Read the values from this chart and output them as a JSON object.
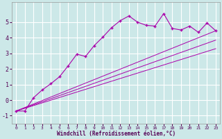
{
  "xlabel": "Windchill (Refroidissement éolien,°C)",
  "background_color": "#cce8e8",
  "grid_color": "#ffffff",
  "line_color": "#aa00aa",
  "xlim": [
    -0.5,
    23.5
  ],
  "ylim": [
    -1.5,
    6.3
  ],
  "xticks": [
    0,
    1,
    2,
    3,
    4,
    5,
    6,
    7,
    8,
    9,
    10,
    11,
    12,
    13,
    14,
    15,
    16,
    17,
    18,
    19,
    20,
    21,
    22,
    23
  ],
  "yticks": [
    -1,
    0,
    1,
    2,
    3,
    4,
    5
  ],
  "series1_x": [
    0,
    1,
    2,
    3,
    4,
    5,
    6,
    7,
    8,
    9,
    10,
    11,
    12,
    13,
    14,
    15,
    16,
    17,
    18,
    19,
    20,
    21,
    22,
    23
  ],
  "series1_y": [
    -0.7,
    -0.7,
    0.15,
    0.65,
    1.05,
    1.5,
    2.2,
    2.95,
    2.8,
    3.5,
    4.05,
    4.65,
    5.1,
    5.4,
    5.0,
    4.8,
    4.75,
    5.55,
    4.6,
    4.5,
    4.75,
    4.35,
    4.95,
    4.45
  ],
  "line2_x0": 0,
  "line2_y0": -0.7,
  "line2_x1": 23,
  "line2_y1": 4.45,
  "line3_x0": 0,
  "line3_y0": -0.7,
  "line3_x1": 23,
  "line3_y1": 3.85,
  "line4_x0": 0,
  "line4_y0": -0.7,
  "line4_x1": 23,
  "line4_y1": 3.3
}
